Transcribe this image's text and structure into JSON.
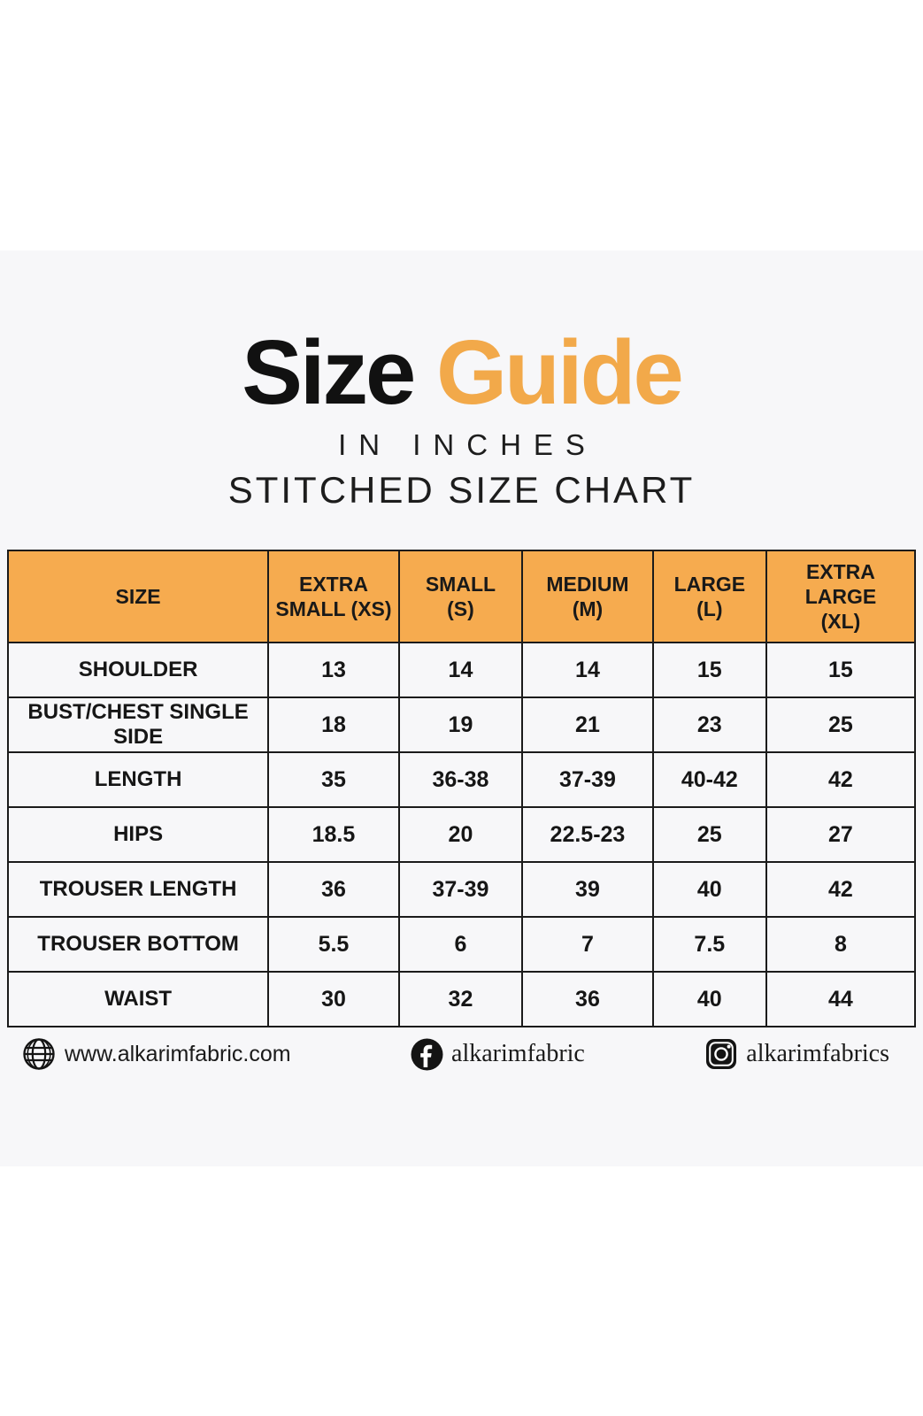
{
  "page": {
    "title": {
      "word_black": "Size",
      "word_accent": "Guide",
      "subtitle_line1": "IN INCHES",
      "subtitle_line2": "STITCHED SIZE CHART"
    }
  },
  "colors": {
    "accent": "#F2A94A",
    "header_bg": "#F6AB4F",
    "table_border": "#1B1B1B",
    "band_bg": "#F7F7F9",
    "page_bg": "#FFFFFF",
    "text": "#161616"
  },
  "chart_data": {
    "type": "table",
    "units": "inches",
    "columns": [
      "SIZE",
      "EXTRA\nSMALL (XS)",
      "SMALL\n(S)",
      "MEDIUM\n(M)",
      "LARGE\n(L)",
      "EXTRA LARGE\n(XL)"
    ],
    "rows": [
      {
        "label": "SHOULDER",
        "values": [
          "13",
          "14",
          "14",
          "15",
          "15"
        ]
      },
      {
        "label": "BUST/CHEST SINGLE SIDE",
        "values": [
          "18",
          "19",
          "21",
          "23",
          "25"
        ]
      },
      {
        "label": "LENGTH",
        "values": [
          "35",
          "36-38",
          "37-39",
          "40-42",
          "42"
        ]
      },
      {
        "label": "HIPS",
        "values": [
          "18.5",
          "20",
          "22.5-23",
          "25",
          "27"
        ]
      },
      {
        "label": "TROUSER LENGTH",
        "values": [
          "36",
          "37-39",
          "39",
          "40",
          "42"
        ]
      },
      {
        "label": "TROUSER BOTTOM",
        "values": [
          "5.5",
          "6",
          "7",
          "7.5",
          "8"
        ]
      },
      {
        "label": "WAIST",
        "values": [
          "30",
          "32",
          "36",
          "40",
          "44"
        ]
      }
    ]
  },
  "footer": {
    "website": {
      "icon": "globe-icon",
      "text": "www.alkarimfabric.com"
    },
    "facebook": {
      "icon": "facebook-icon",
      "text": "alkarimfabric"
    },
    "instagram": {
      "icon": "instagram-icon",
      "text": "alkarimfabrics"
    }
  }
}
